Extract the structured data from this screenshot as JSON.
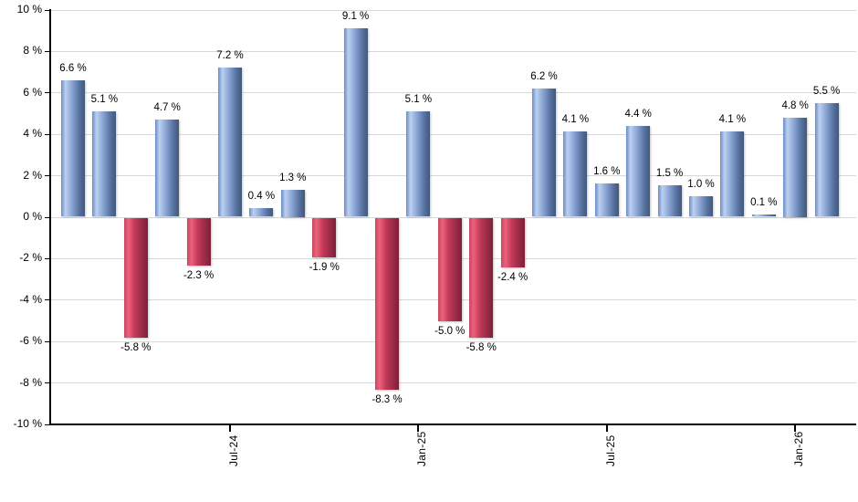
{
  "chart_data": {
    "type": "bar",
    "title": "",
    "description": "Monthly percentage returns bar chart, blue bars positive, red bars negative",
    "values": [
      6.6,
      5.1,
      -5.8,
      4.7,
      -2.3,
      7.2,
      0.4,
      1.3,
      -1.9,
      9.1,
      -8.3,
      5.1,
      -5.0,
      -5.8,
      -2.4,
      6.2,
      4.1,
      1.6,
      4.4,
      1.5,
      1.0,
      4.1,
      0.1,
      4.8,
      5.5
    ],
    "bar_labels": [
      "6.6 %",
      "5.1 %",
      "-5.8 %",
      "4.7 %",
      "-2.3 %",
      "7.2 %",
      "0.4 %",
      "1.3 %",
      "-1.9 %",
      "9.1 %",
      "-8.3 %",
      "5.1 %",
      "-5.0 %",
      "-5.8 %",
      "-2.4 %",
      "6.2 %",
      "4.1 %",
      "1.6 %",
      "4.4 %",
      "1.5 %",
      "1.0 %",
      "4.1 %",
      "0.1 %",
      "4.8 %",
      "5.5 %"
    ],
    "x_ticks": [
      {
        "bar_index": 5,
        "label": "Jul-24"
      },
      {
        "bar_index": 11,
        "label": "Jan-25"
      },
      {
        "bar_index": 17,
        "label": "Jul-25"
      },
      {
        "bar_index": 23,
        "label": "Jan-26"
      }
    ],
    "y_axis": {
      "min": -10,
      "max": 10,
      "step": 2,
      "tick_labels": [
        "10 %",
        "8 %",
        "6 %",
        "4 %",
        "2 %",
        "0 %",
        "-2 %",
        "-4 %",
        "-6 %",
        "-8 %",
        "-10 %"
      ]
    },
    "ylim": [
      -10,
      10
    ],
    "grid": true,
    "legend": false,
    "colors": {
      "positive_gradient": [
        "#6a8cc6",
        "#bdd0f0",
        "#8aa6d4",
        "#5a74a4",
        "#425878"
      ],
      "negative_gradient": [
        "#c4475f",
        "#ee617b",
        "#c23a59",
        "#9b2b47",
        "#7c2038"
      ],
      "gridline": "#d8d8d8",
      "axis": "#000000",
      "text": "#000000"
    }
  }
}
